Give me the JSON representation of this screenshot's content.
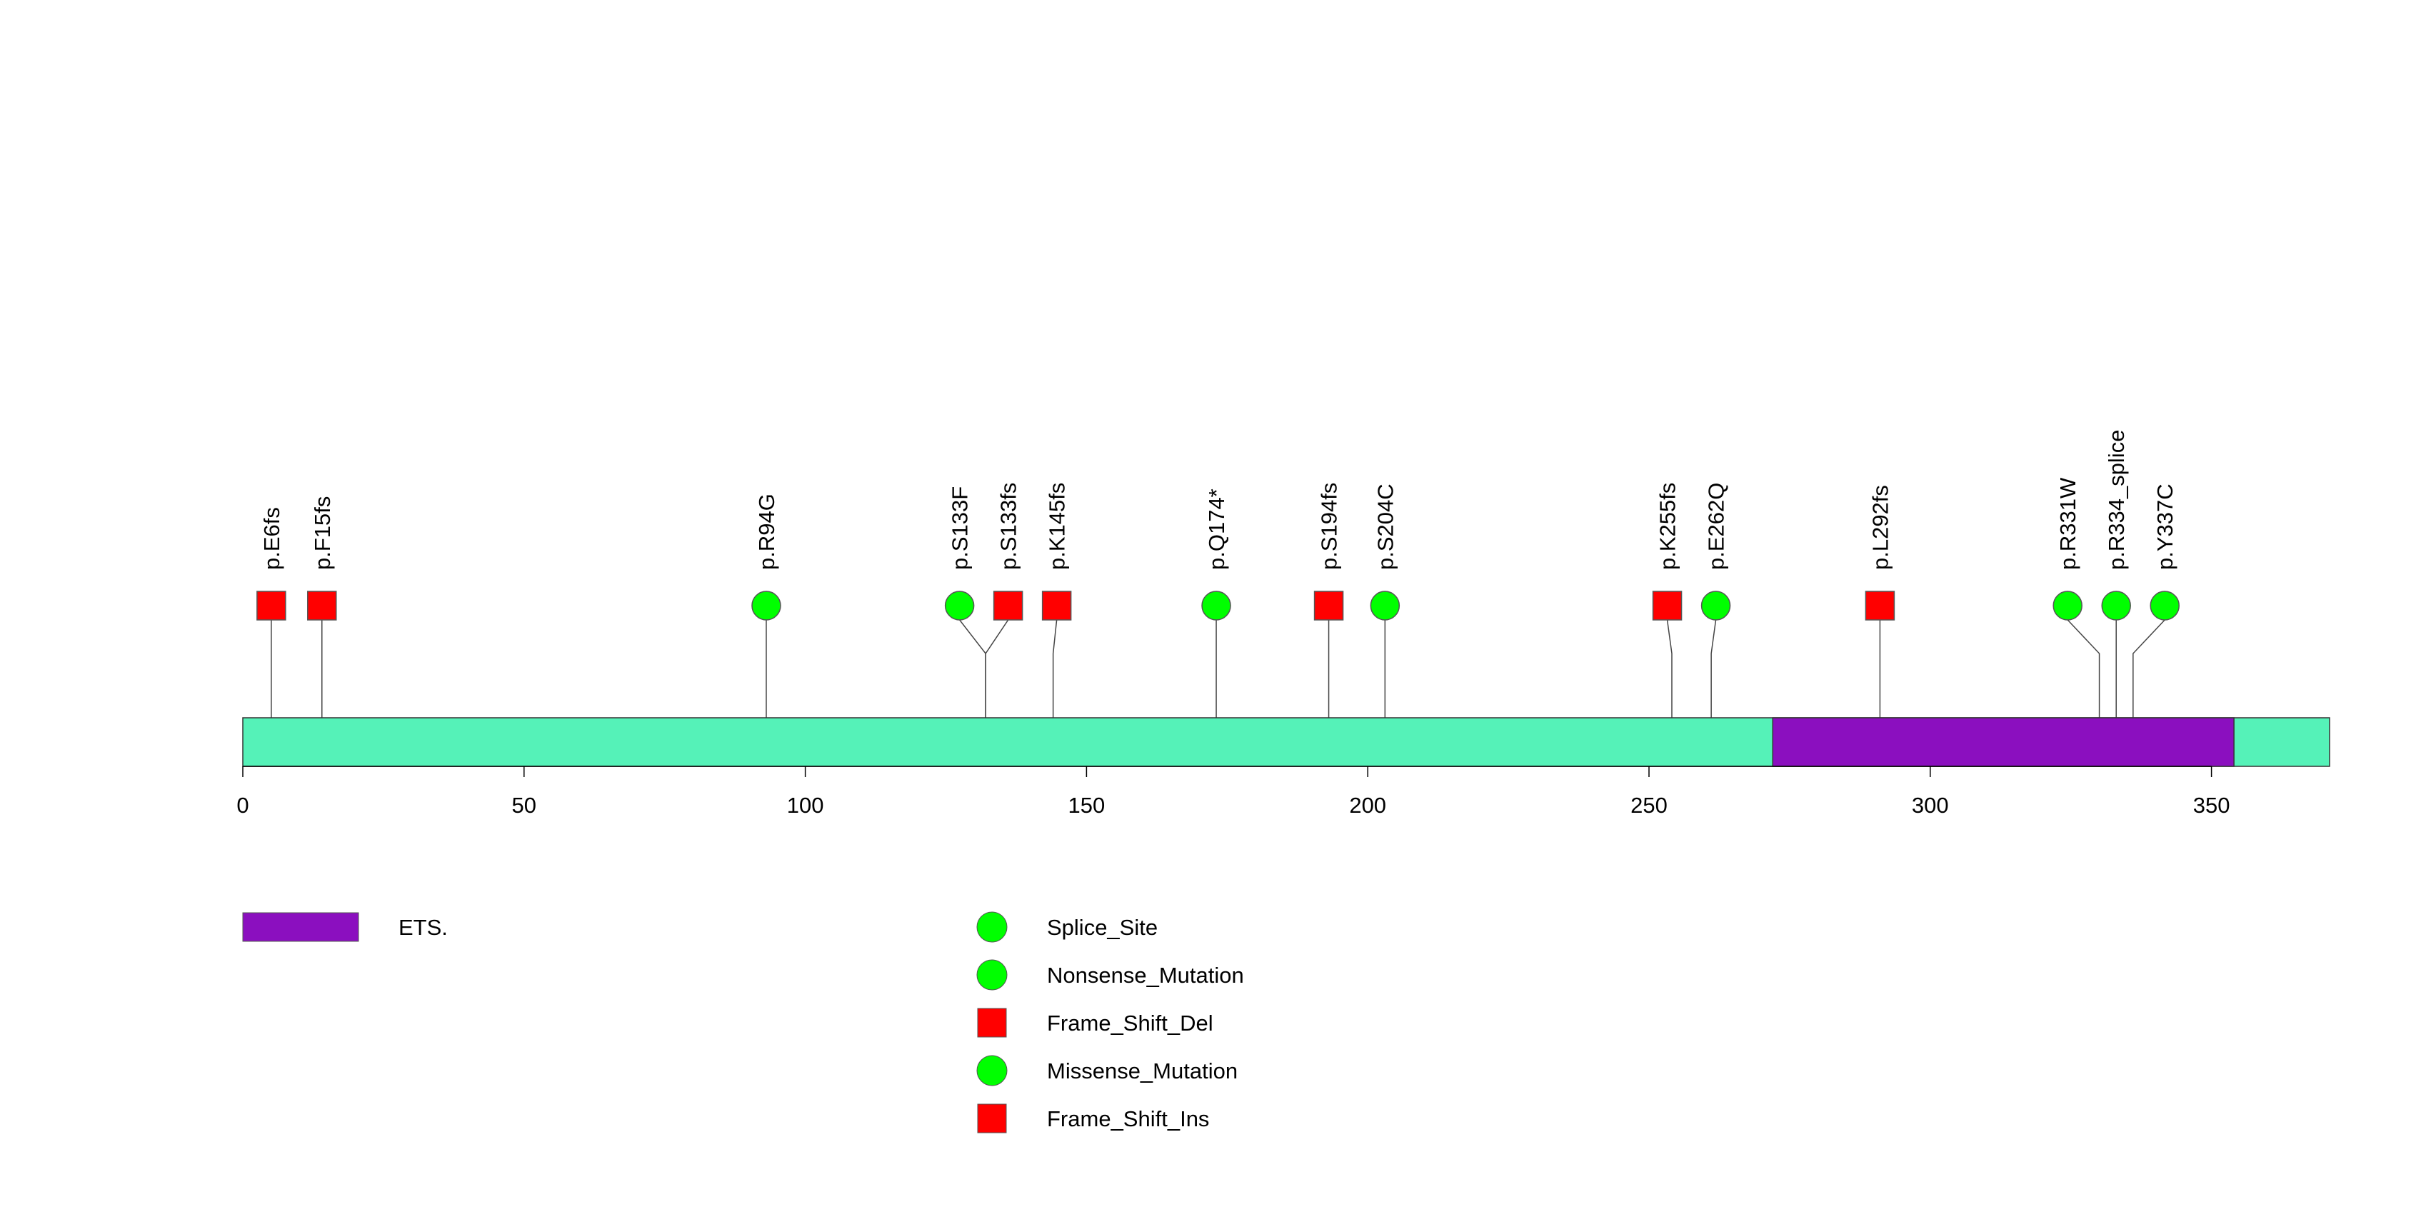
{
  "chart_data": {
    "type": "lollipop",
    "title": "",
    "xlabel": "",
    "ylabel": "",
    "protein_length": 371,
    "xlim": [
      0,
      371
    ],
    "xticks": [
      0,
      50,
      100,
      150,
      200,
      250,
      300,
      350
    ],
    "domains": [
      {
        "name": "ETS.",
        "start": 272,
        "end": 354,
        "color": "#8B0FBF"
      }
    ],
    "backbone_color": "#55F2B8",
    "mutations": [
      {
        "label": "p.E6fs",
        "position": 5,
        "type": "Frame_Shift_Del",
        "shape": "square",
        "color": "#FF0000"
      },
      {
        "label": "p.F15fs",
        "position": 14,
        "type": "Frame_Shift_Del",
        "shape": "square",
        "color": "#FF0000"
      },
      {
        "label": "p.R94G",
        "position": 93,
        "type": "Missense_Mutation",
        "shape": "circle",
        "color": "#00FF00"
      },
      {
        "label": "p.S133F",
        "position": 132,
        "type": "Missense_Mutation",
        "shape": "circle",
        "color": "#00FF00"
      },
      {
        "label": "p.S133fs",
        "position": 132,
        "type": "Frame_Shift_Del",
        "shape": "square",
        "color": "#FF0000"
      },
      {
        "label": "p.K145fs",
        "position": 144,
        "type": "Frame_Shift_Ins",
        "shape": "square",
        "color": "#FF0000"
      },
      {
        "label": "p.Q174*",
        "position": 173,
        "type": "Nonsense_Mutation",
        "shape": "circle",
        "color": "#00FF00"
      },
      {
        "label": "p.S194fs",
        "position": 193,
        "type": "Frame_Shift_Del",
        "shape": "square",
        "color": "#FF0000"
      },
      {
        "label": "p.S204C",
        "position": 203,
        "type": "Missense_Mutation",
        "shape": "circle",
        "color": "#00FF00"
      },
      {
        "label": "p.K255fs",
        "position": 254,
        "type": "Frame_Shift_Del",
        "shape": "square",
        "color": "#FF0000"
      },
      {
        "label": "p.E262Q",
        "position": 261,
        "type": "Missense_Mutation",
        "shape": "circle",
        "color": "#00FF00"
      },
      {
        "label": "p.L292fs",
        "position": 291,
        "type": "Frame_Shift_Del",
        "shape": "square",
        "color": "#FF0000"
      },
      {
        "label": "p.R331W",
        "position": 330,
        "type": "Missense_Mutation",
        "shape": "circle",
        "color": "#00FF00"
      },
      {
        "label": "p.R334_splice",
        "position": 333,
        "type": "Splice_Site",
        "shape": "circle",
        "color": "#00FF00"
      },
      {
        "label": "p.Y337C",
        "position": 336,
        "type": "Missense_Mutation",
        "shape": "circle",
        "color": "#00FF00"
      }
    ],
    "legend": {
      "domains": [
        {
          "label": "ETS.",
          "color": "#8B0FBF"
        }
      ],
      "mutation_types": [
        {
          "label": "Splice_Site",
          "shape": "circle",
          "color": "#00FF00"
        },
        {
          "label": "Nonsense_Mutation",
          "shape": "circle",
          "color": "#00FF00"
        },
        {
          "label": "Frame_Shift_Del",
          "shape": "square",
          "color": "#FF0000"
        },
        {
          "label": "Missense_Mutation",
          "shape": "circle",
          "color": "#00FF00"
        },
        {
          "label": "Frame_Shift_Ins",
          "shape": "square",
          "color": "#FF0000"
        }
      ]
    }
  }
}
